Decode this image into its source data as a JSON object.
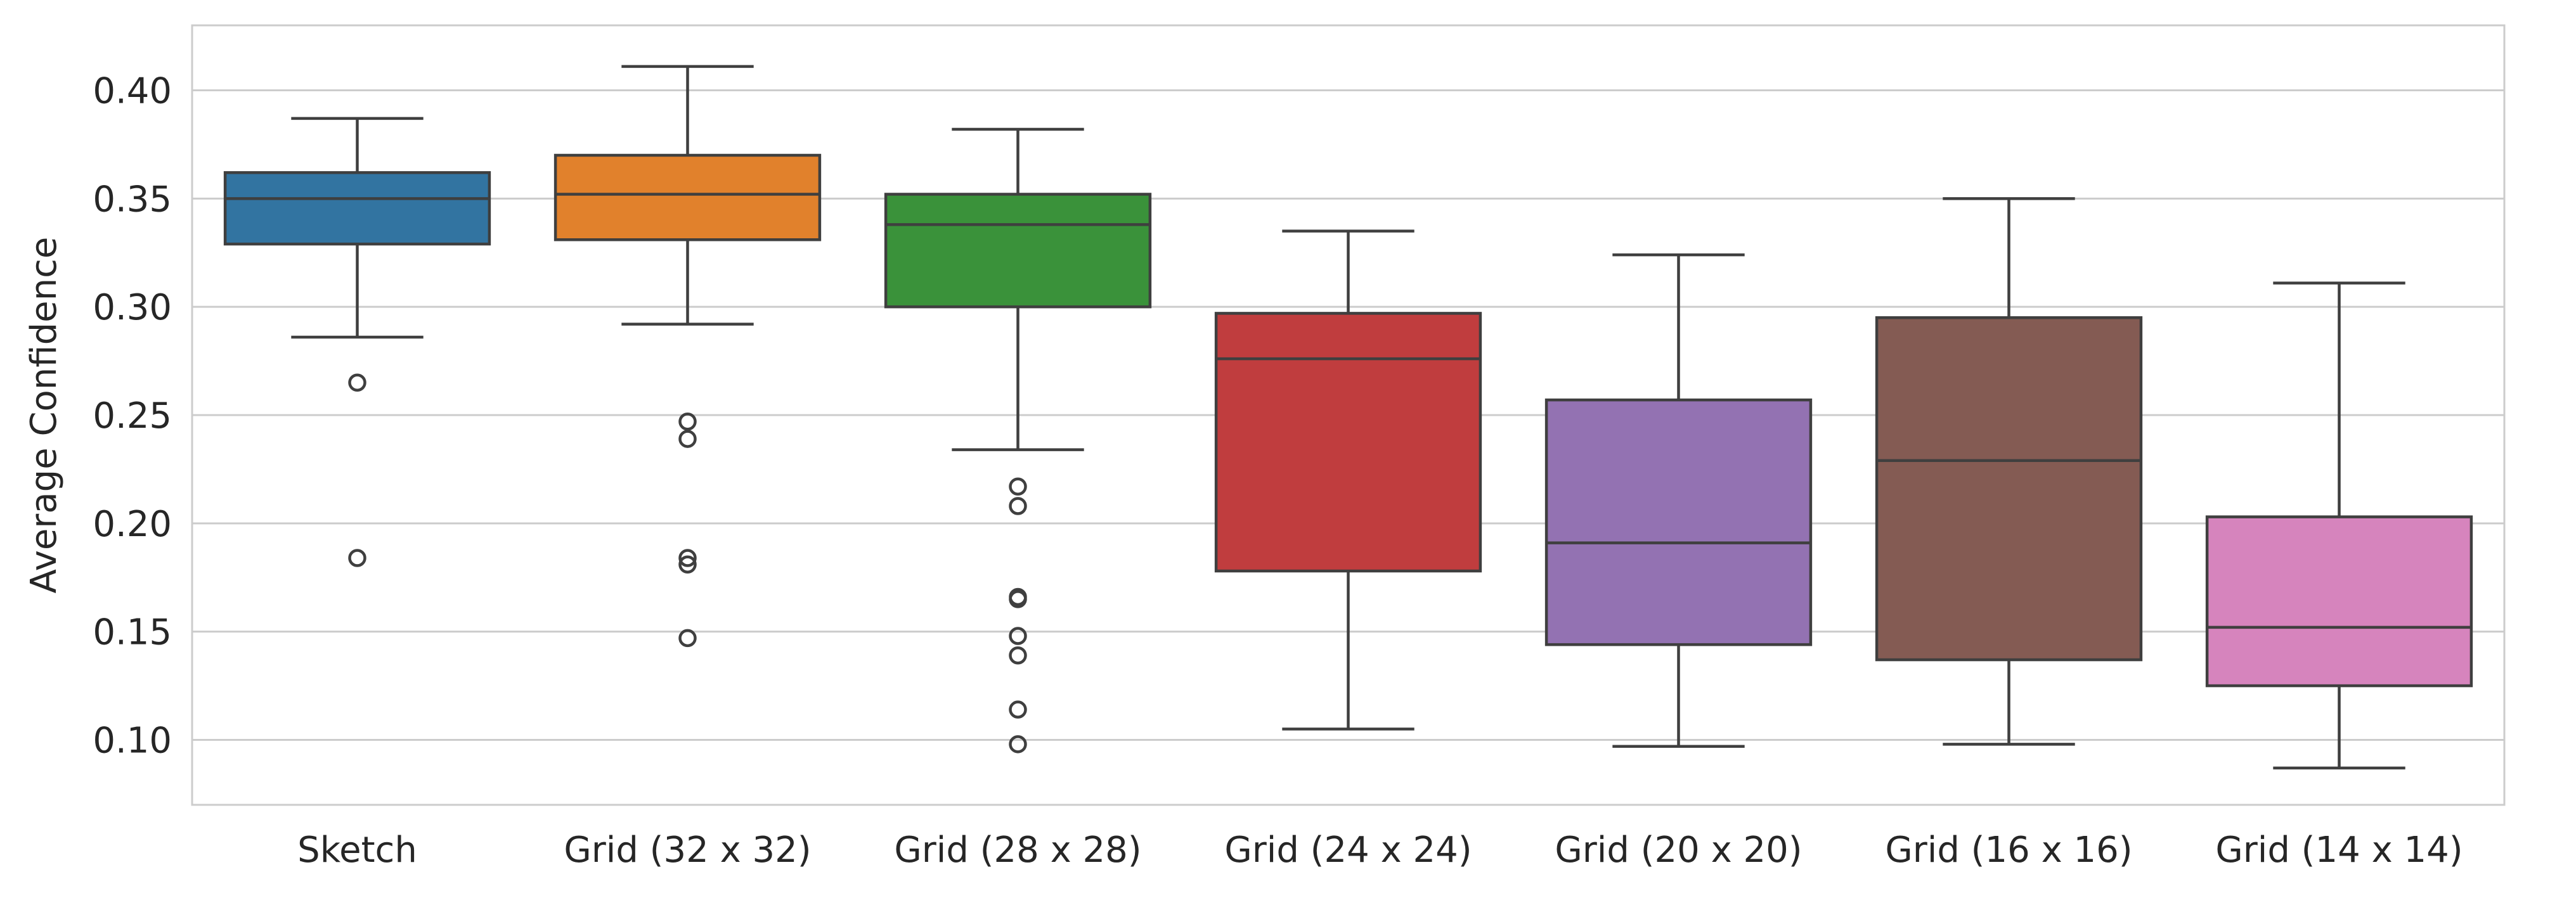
{
  "chart_data": {
    "type": "box",
    "ylabel": "Average Confidence",
    "ylim": [
      0.07,
      0.43
    ],
    "yticks": [
      0.1,
      0.15,
      0.2,
      0.25,
      0.3,
      0.35,
      0.4
    ],
    "ytick_labels": [
      "0.10",
      "0.15",
      "0.20",
      "0.25",
      "0.30",
      "0.35",
      "0.40"
    ],
    "grid": "horizontal",
    "categories": [
      "Sketch",
      "Grid (32 x 32)",
      "Grid (28 x 28)",
      "Grid (24 x 24)",
      "Grid (20 x 20)",
      "Grid (16 x 16)",
      "Grid (14 x 14)"
    ],
    "boxes": [
      {
        "category": "Sketch",
        "whisker_low": 0.286,
        "q1": 0.329,
        "median": 0.35,
        "q3": 0.362,
        "whisker_high": 0.387,
        "outliers": [
          0.265,
          0.184
        ],
        "color": "#3274a1"
      },
      {
        "category": "Grid (32 x 32)",
        "whisker_low": 0.292,
        "q1": 0.331,
        "median": 0.352,
        "q3": 0.37,
        "whisker_high": 0.411,
        "outliers": [
          0.247,
          0.239,
          0.184,
          0.181,
          0.147
        ],
        "color": "#e1812c"
      },
      {
        "category": "Grid (28 x 28)",
        "whisker_low": 0.234,
        "q1": 0.3,
        "median": 0.338,
        "q3": 0.352,
        "whisker_high": 0.382,
        "outliers": [
          0.217,
          0.208,
          0.166,
          0.165,
          0.148,
          0.139,
          0.114,
          0.098
        ],
        "color": "#3a923a"
      },
      {
        "category": "Grid (24 x 24)",
        "whisker_low": 0.105,
        "q1": 0.178,
        "median": 0.276,
        "q3": 0.297,
        "whisker_high": 0.335,
        "outliers": [],
        "color": "#c03d3e"
      },
      {
        "category": "Grid (20 x 20)",
        "whisker_low": 0.097,
        "q1": 0.144,
        "median": 0.191,
        "q3": 0.257,
        "whisker_high": 0.324,
        "outliers": [],
        "color": "#9372b2"
      },
      {
        "category": "Grid (16 x 16)",
        "whisker_low": 0.098,
        "q1": 0.137,
        "median": 0.229,
        "q3": 0.295,
        "whisker_high": 0.35,
        "outliers": [],
        "color": "#845b53"
      },
      {
        "category": "Grid (14 x 14)",
        "whisker_low": 0.087,
        "q1": 0.125,
        "median": 0.152,
        "q3": 0.203,
        "whisker_high": 0.311,
        "outliers": [],
        "color": "#d684bd"
      }
    ]
  }
}
